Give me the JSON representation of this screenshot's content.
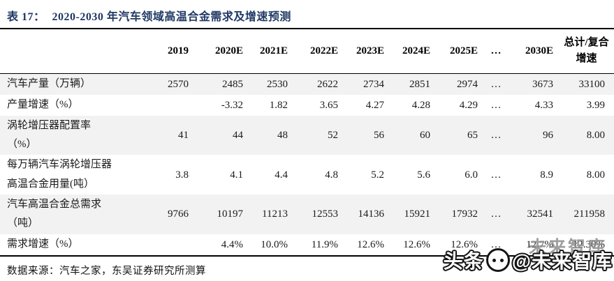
{
  "title": {
    "prefix": "表 17：",
    "text": "2020-2030 年汽车领域高温合金需求及增速预测"
  },
  "table": {
    "columns": [
      "",
      "2019",
      "2020E",
      "2021E",
      "2022E",
      "2023E",
      "2024E",
      "2025E",
      "…",
      "2030E",
      "总计/复合增速"
    ],
    "rows": [
      {
        "label": "汽车产量（万辆）",
        "values": [
          "2570",
          "2485",
          "2530",
          "2622",
          "2734",
          "2851",
          "2974",
          "…",
          "3673",
          "33100"
        ]
      },
      {
        "label": "产量增速（%）",
        "values": [
          "",
          "-3.32",
          "1.82",
          "3.65",
          "4.27",
          "4.28",
          "4.29",
          "…",
          "4.33",
          "3.99"
        ]
      },
      {
        "label": "涡轮增压器配置率\n（%）",
        "values": [
          "41",
          "44",
          "48",
          "52",
          "56",
          "60",
          "65",
          "…",
          "96",
          "8.00"
        ]
      },
      {
        "label": "每万辆汽车涡轮增压器\n高温合金用量(吨）",
        "values": [
          "3.8",
          "4.1",
          "4.4",
          "4.8",
          "5.2",
          "5.6",
          "6.0",
          "…",
          "8.9",
          "8.00"
        ]
      },
      {
        "label": "汽车高温合金总需求\n（吨）",
        "values": [
          "9766",
          "10197",
          "11213",
          "12553",
          "14136",
          "15921",
          "17932",
          "…",
          "32541",
          "211958"
        ]
      },
      {
        "label": "需求增速（%）",
        "values": [
          "",
          "4.4%",
          "10.0%",
          "11.9%",
          "12.6%",
          "12.6%",
          "12.6%",
          "…",
          "12.7%",
          "12.30%"
        ]
      }
    ]
  },
  "source": "数据来源：汽车之家，东吴证券研究所测算",
  "watermark": {
    "prefix": "头条",
    "suffix": "@未来智库",
    "ghost": "未来智库"
  },
  "colors": {
    "title": "#1f3864",
    "stripe": "#f2f2f2",
    "rule": "#000000"
  }
}
